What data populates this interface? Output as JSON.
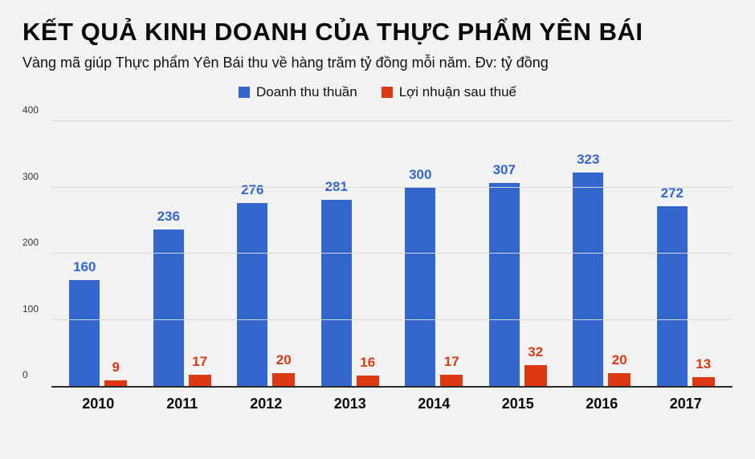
{
  "page": {
    "background": "#f2f2f2"
  },
  "header": {
    "title": "KẾT QUẢ KINH DOANH CỦA THỰC PHẨM YÊN BÁI",
    "subtitle": "Vàng mã giúp Thực phẩm Yên Bái thu về hàng trăm tỷ đồng mỗi năm. Đv: tỷ đồng"
  },
  "colors": {
    "revenue_blue": "#3366cc",
    "profit_red": "#dc3912",
    "gridline": "#d9d9d9",
    "axis_line": "#2b2b2b"
  },
  "chart_data": {
    "type": "bar",
    "title": "KẾT QUẢ KINH DOANH CỦA THỰC PHẨM YÊN BÁI",
    "subtitle": "Vàng mã giúp Thực phẩm Yên Bái thu về hàng trăm tỷ đồng mỗi năm. Đv: tỷ đồng",
    "unit": "tỷ đồng",
    "categories": [
      "2010",
      "2011",
      "2012",
      "2013",
      "2014",
      "2015",
      "2016",
      "2017"
    ],
    "series": [
      {
        "name": "Doanh thu thuần",
        "color": "#3366cc",
        "values": [
          160,
          236,
          276,
          281,
          300,
          307,
          323,
          272
        ]
      },
      {
        "name": "Lợi nhuận sau thuế",
        "color": "#dc3912",
        "values": [
          9,
          17,
          20,
          16,
          17,
          32,
          20,
          13
        ]
      }
    ],
    "xlabel": "",
    "ylabel": "",
    "ylim": [
      0,
      400
    ],
    "yticks": [
      0,
      100,
      200,
      300,
      400
    ],
    "grid": true,
    "legend_position": "top",
    "data_labels": true
  }
}
